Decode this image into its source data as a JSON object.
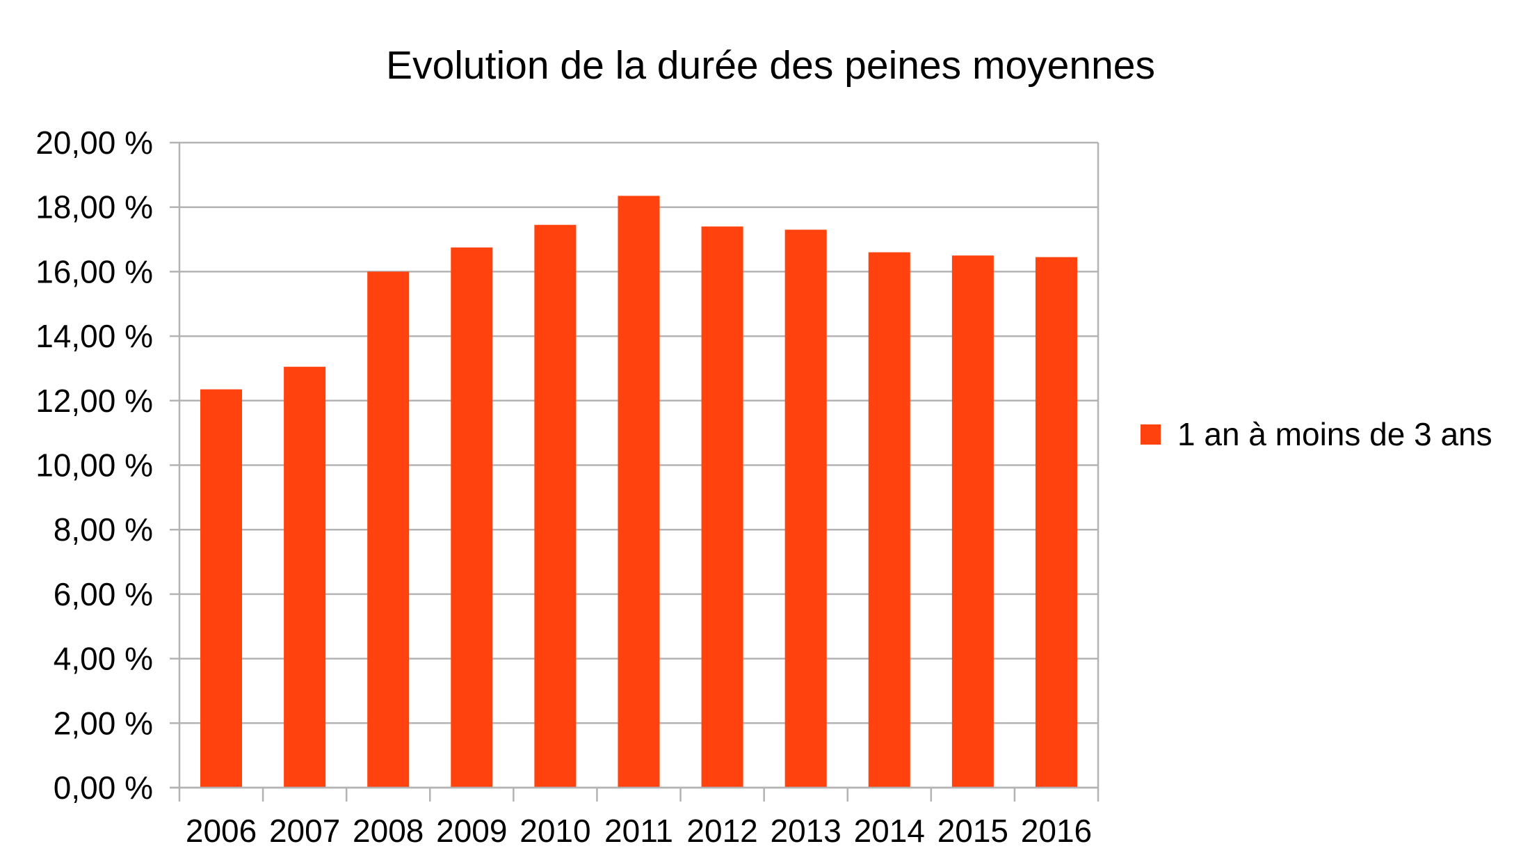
{
  "chart_data": {
    "type": "bar",
    "title": "Evolution de la durée des peines moyennes",
    "categories": [
      "2006",
      "2007",
      "2008",
      "2009",
      "2010",
      "2011",
      "2012",
      "2013",
      "2014",
      "2015",
      "2016"
    ],
    "series": [
      {
        "name": "1 an à moins de 3 ans",
        "values": [
          12.35,
          13.05,
          16.0,
          16.75,
          17.45,
          18.35,
          17.4,
          17.3,
          16.6,
          16.5,
          16.45
        ],
        "color": "#ff420e"
      }
    ],
    "ylim": [
      0,
      20
    ],
    "yticks": [
      0,
      2,
      4,
      6,
      8,
      10,
      12,
      14,
      16,
      18,
      20
    ],
    "ytick_labels": [
      "0,00 %",
      "2,00 %",
      "4,00 %",
      "6,00 %",
      "8,00 %",
      "10,00 %",
      "12,00 %",
      "14,00 %",
      "16,00 %",
      "18,00 %",
      "20,00 %"
    ],
    "xlabel": "",
    "ylabel": "",
    "grid": true,
    "legend_position": "right"
  }
}
